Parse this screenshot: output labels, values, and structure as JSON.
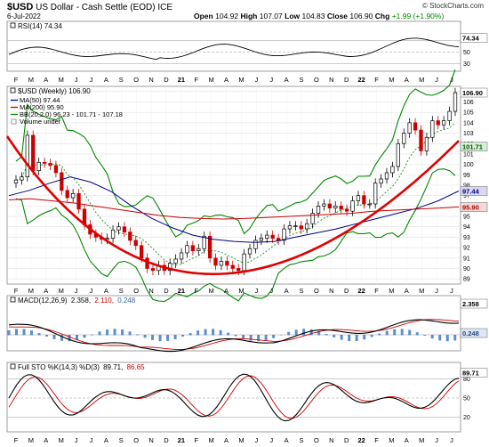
{
  "header": {
    "symbol": "$USD",
    "name": "US Dollar - Cash Settle (EOD)",
    "exchange": "ICE",
    "date": "6-Jul-2022",
    "open_label": "Open",
    "open": "104.92",
    "high_label": "High",
    "high": "107.07",
    "low_label": "Low",
    "low": "104.83",
    "close_label": "Close",
    "close": "106.90",
    "chg_label": "Chg",
    "chg": "+1.99 (+1.90%)",
    "copyright": "© StockCharts.com"
  },
  "rsi_panel": {
    "legend": "RSI(14) 74.34",
    "value_tag": "74.34",
    "ticks": [
      "70",
      "50",
      "30"
    ]
  },
  "price_panel": {
    "legend_title": "$USD (Weekly) 106.90",
    "legend_ma50": "MA(50) 97.44",
    "legend_ma200": "MA(200) 95.90",
    "legend_bb": "BB(20,2.0) 96.23 - 101.71 - 107.18",
    "legend_volume": "Volume undef",
    "tag_close": "106.90",
    "tag_bbmid": "101.71",
    "tag_ma50": "97.44",
    "tag_ma200": "95.90",
    "ticks": [
      "107",
      "106",
      "105",
      "104",
      "103",
      "102",
      "101",
      "100",
      "99",
      "98",
      "97",
      "96",
      "95",
      "94",
      "93",
      "92",
      "91",
      "90",
      "89"
    ]
  },
  "macd_panel": {
    "legend_name": "MACD(12,26,9)",
    "legend_v1": "2.358,",
    "legend_v2": "2.110,",
    "legend_v3": "0.248",
    "tag_macd": "2.358",
    "tag_hist": "0.248"
  },
  "sto_panel": {
    "legend_name": "Full STO %K(14,3) %D(3)",
    "legend_k": "89.71,",
    "legend_d": "86.65",
    "tag_k": "89.71",
    "ticks": [
      "80",
      "50",
      "20"
    ]
  },
  "x_axis_labels": [
    "F",
    "M",
    "A",
    "M",
    "J",
    "J",
    "A",
    "S",
    "O",
    "N",
    "D",
    "21",
    "F",
    "M",
    "A",
    "M",
    "J",
    "J",
    "A",
    "S",
    "O",
    "N",
    "D",
    "22",
    "F",
    "M",
    "A",
    "M",
    "J",
    "J"
  ],
  "colors": {
    "up": "#000000",
    "down": "#cc0000",
    "ma50": "#000088",
    "ma200": "#cc0000",
    "bb": "#008800",
    "trend": "#e00000",
    "macd_signal": "#cc0000",
    "hist": "#5b8fc9"
  },
  "chart_data": {
    "type": "line",
    "subtype": "candlestick",
    "period": "Weekly",
    "x_start": "2020-02",
    "x_end": "2022-07",
    "ylim": [
      88.5,
      107.5
    ],
    "close": [
      98.5,
      98.8,
      102.8,
      99.4,
      100.2,
      100.1,
      99.9,
      99.2,
      97.5,
      96.8,
      97.2,
      95.7,
      94.2,
      93.3,
      93.0,
      92.8,
      92.9,
      93.7,
      94.0,
      93.5,
      92.7,
      92.2,
      91.0,
      90.0,
      89.8,
      90.3,
      89.8,
      90.5,
      90.9,
      91.5,
      92.2,
      91.7,
      91.9,
      93.1,
      91.0,
      90.3,
      90.7,
      90.3,
      90.0,
      89.8,
      91.4,
      91.9,
      92.7,
      92.9,
      93.2,
      92.9,
      92.7,
      93.8,
      94.1,
      94.1,
      93.8,
      94.3,
      95.3,
      96.0,
      96.2,
      95.8,
      96.0,
      95.7,
      95.5,
      96.5,
      97.0,
      96.2,
      96.2,
      98.2,
      98.6,
      99.2,
      99.8,
      102.0,
      103.0,
      104.0,
      103.3,
      101.3,
      102.6,
      104.2,
      103.8,
      104.2,
      105.1,
      106.9
    ],
    "ma50": [
      97.0,
      97.5,
      98.2,
      98.8,
      98.3,
      97.4,
      96.0,
      94.8,
      93.9,
      93.2,
      92.8,
      92.6,
      92.5,
      92.6,
      93.0,
      93.4,
      93.8,
      94.3,
      94.8,
      95.3,
      95.8,
      96.5,
      97.44
    ],
    "ma200": [
      96.6,
      96.7,
      96.5,
      96.3,
      96.0,
      95.7,
      95.4,
      95.1,
      94.9,
      94.8,
      94.75,
      94.8,
      94.9,
      95.0,
      95.1,
      95.2,
      95.3,
      95.5,
      95.6,
      95.7,
      95.8,
      95.9
    ],
    "bb_upper": 107.18,
    "bb_middle": 101.71,
    "bb_lower": 96.23,
    "ma50_last": 97.44,
    "ma200_last": 95.9,
    "rsi_last": 74.34,
    "macd_last": 2.358,
    "macd_signal_last": 2.11,
    "macd_hist_last": 0.248,
    "sto_k_last": 89.71,
    "sto_d_last": 86.65
  }
}
